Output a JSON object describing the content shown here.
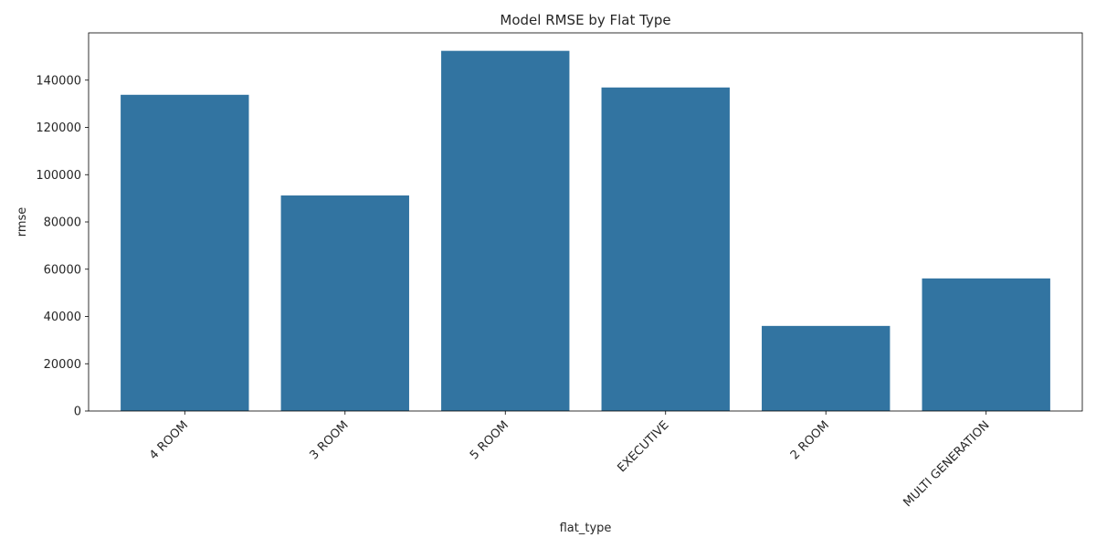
{
  "chart_data": {
    "type": "bar",
    "title": "Model RMSE by Flat Type",
    "xlabel": "flat_type",
    "ylabel": "rmse",
    "categories": [
      "4 ROOM",
      "3 ROOM",
      "5 ROOM",
      "EXECUTIVE",
      "2 ROOM",
      "MULTI GENERATION"
    ],
    "values": [
      133800,
      91200,
      152400,
      136900,
      36000,
      56100
    ],
    "ylim": [
      0,
      160000
    ],
    "yticks": [
      0,
      20000,
      40000,
      60000,
      80000,
      100000,
      120000,
      140000
    ],
    "grid": false,
    "bar_color": "#3274a1",
    "xtick_rotation": 45
  }
}
